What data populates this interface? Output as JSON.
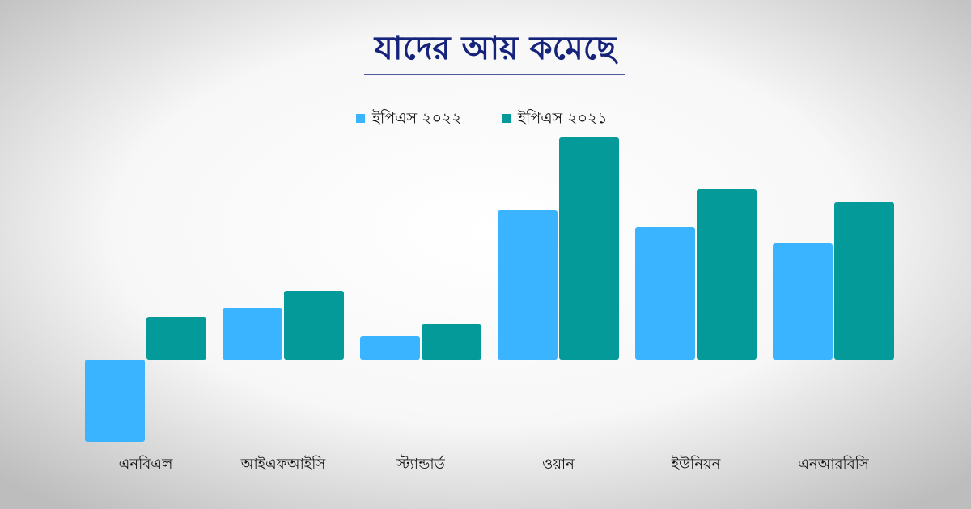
{
  "chart_data": {
    "type": "bar",
    "title": "যাদের আয় কমেছে",
    "categories": [
      "এনবিএল",
      "আইএফআইসি",
      "স্ট্যান্ডার্ড",
      "ওয়ান",
      "ইউনিয়ন",
      "এনআরবিসি"
    ],
    "series": [
      {
        "name": "ইপিএস ২০২২",
        "color": "#3ab4ff",
        "values": [
          -102,
          64,
          29,
          185,
          164,
          144
        ]
      },
      {
        "name": "ইপিএস ২০২১",
        "color": "#049a9a",
        "values": [
          53,
          85,
          44,
          275,
          211,
          195
        ]
      }
    ]
  }
}
